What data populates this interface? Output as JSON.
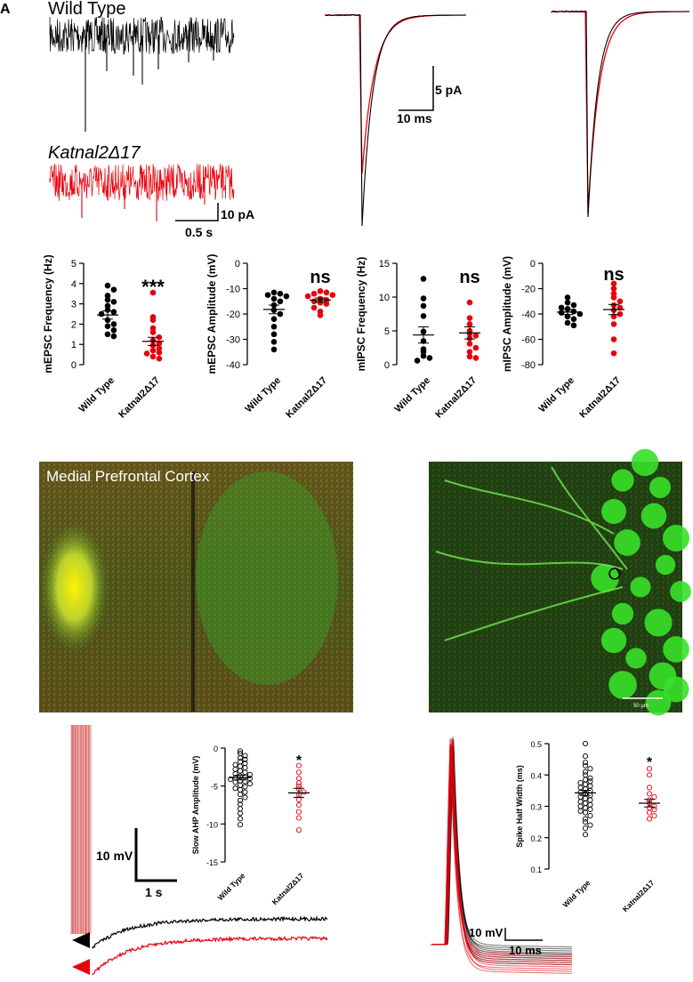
{
  "figure": {
    "panel_letter": "A",
    "trace_labels": {
      "wild_type": "Wild Type",
      "mutant": "Katnal2Δ17"
    },
    "scalebars": {
      "raw": {
        "y": "10 pA",
        "x": "0.5 s"
      },
      "avg": {
        "y": "5 pA",
        "x": "10 ms"
      },
      "ahp": {
        "y": "10 mV",
        "x": "1 s"
      },
      "spike": {
        "y": "10 mV",
        "x": "10 ms"
      }
    },
    "image_labels": {
      "mpfc": "Medial Prefrontal Cortex",
      "scale": "50 µm"
    }
  },
  "colors": {
    "wild_type": "#000000",
    "mutant": "#e8000b",
    "mutant_light": "#f08b8b"
  },
  "chart_data": [
    {
      "type": "scatter",
      "ylabel": "mEPSC Frequency (Hz)",
      "ylim": [
        0,
        5
      ],
      "yticks": [
        "0",
        "1",
        "2",
        "3",
        "4",
        "5"
      ],
      "categories": [
        "Wild Type",
        "Katnal2Δ17"
      ],
      "significance": "***",
      "series": [
        {
          "values": [
            3.9,
            3.7,
            3.4,
            3.2,
            3.1,
            2.9,
            2.7,
            2.6,
            2.5,
            2.2,
            2.0,
            1.9,
            1.7,
            1.5,
            1.4
          ],
          "mean": 2.45,
          "sem": 0.2
        },
        {
          "values": [
            3.55,
            2.35,
            2.2,
            1.8,
            1.6,
            1.35,
            1.2,
            1.05,
            0.95,
            0.8,
            0.7,
            0.6,
            0.55,
            0.4,
            0.3
          ],
          "mean": 1.15,
          "sem": 0.2
        }
      ]
    },
    {
      "type": "scatter",
      "ylabel": "mEPSC Amplitude (mV)",
      "ylim": [
        -40,
        0
      ],
      "yticks": [
        "0",
        "-10",
        "-20",
        "-30",
        "-40"
      ],
      "categories": [
        "Wild Type",
        "Katnal2Δ17"
      ],
      "significance": "ns",
      "series": [
        {
          "values": [
            -11.5,
            -12,
            -12.5,
            -13,
            -14,
            -15,
            -16.5,
            -18.5,
            -20,
            -22,
            -25,
            -28,
            -31,
            -34
          ],
          "mean": -18.2,
          "sem": 1.7
        },
        {
          "values": [
            -11,
            -11.5,
            -12,
            -12.5,
            -13,
            -14,
            -14.5,
            -15,
            -15.5,
            -16,
            -17.5,
            -19,
            -20.5
          ],
          "mean": -14.5,
          "sem": 0.8
        }
      ]
    },
    {
      "type": "scatter",
      "ylabel": "mIPSC Frequency (Hz)",
      "ylim": [
        0,
        15
      ],
      "yticks": [
        "0",
        "5",
        "10",
        "15"
      ],
      "categories": [
        "Wild Type",
        "Katnal2Δ17"
      ],
      "significance": "ns",
      "series": [
        {
          "values": [
            12.7,
            9.8,
            8.7,
            7.2,
            4.9,
            3.5,
            2.3,
            1.9,
            1.3,
            1.0,
            0.6
          ],
          "mean": 4.4,
          "sem": 1.2
        },
        {
          "values": [
            9.2,
            6.9,
            6.0,
            5.0,
            4.6,
            4.3,
            3.9,
            3.1,
            2.5,
            1.9,
            1.2,
            1.0
          ],
          "mean": 4.7,
          "sem": 0.9
        }
      ]
    },
    {
      "type": "scatter",
      "ylabel": "mIPSC Amplitude (mV)",
      "ylim": [
        -80,
        0
      ],
      "yticks": [
        "0",
        "-20",
        "-40",
        "-60",
        "-80"
      ],
      "categories": [
        "Wild Type",
        "Katnal2Δ17"
      ],
      "significance": "ns",
      "series": [
        {
          "values": [
            -27,
            -31,
            -33,
            -35,
            -36,
            -38,
            -39,
            -40,
            -42,
            -44,
            -47,
            -49
          ],
          "mean": -38.5,
          "sem": 2.0
        },
        {
          "values": [
            -16,
            -20,
            -24,
            -27,
            -30,
            -33,
            -35,
            -37,
            -40,
            -42,
            -48,
            -60,
            -71
          ],
          "mean": -36.5,
          "sem": 4.0
        }
      ]
    },
    {
      "type": "scatter",
      "ylabel": "Slow AHP Amplitude (mV)",
      "ylim": [
        -15,
        0
      ],
      "yticks": [
        "0",
        "-5",
        "-10",
        "-15"
      ],
      "categories": [
        "Wild Type",
        "Katnal2Δ17"
      ],
      "significance": "*",
      "hollow": true,
      "series": [
        {
          "values": [
            -0.4,
            -0.7,
            -1.0,
            -1.3,
            -1.5,
            -1.8,
            -2.0,
            -2.2,
            -2.4,
            -2.6,
            -2.8,
            -3.0,
            -3.2,
            -3.4,
            -3.5,
            -3.7,
            -3.8,
            -3.9,
            -4.0,
            -4.1,
            -4.3,
            -4.4,
            -4.5,
            -4.7,
            -4.9,
            -5.1,
            -5.3,
            -5.5,
            -5.8,
            -6.1,
            -6.5,
            -6.9,
            -7.4,
            -8.0,
            -8.6,
            -9.3,
            -10.1
          ],
          "mean": -3.9,
          "sem": 0.3
        },
        {
          "values": [
            -2.3,
            -3.2,
            -4.0,
            -4.6,
            -5.0,
            -5.4,
            -5.8,
            -6.2,
            -6.8,
            -7.5,
            -8.4,
            -9.2,
            -10.8
          ],
          "mean": -5.9,
          "sem": 0.6
        }
      ]
    },
    {
      "type": "scatter",
      "ylabel": "Spike Half Width (ms)",
      "ylim": [
        0.1,
        0.5
      ],
      "yticks": [
        "0.1",
        "0.2",
        "0.3",
        "0.4",
        "0.5"
      ],
      "categories": [
        "Wild Type",
        "Katnal2Δ17"
      ],
      "significance": "*",
      "hollow": true,
      "series": [
        {
          "values": [
            0.5,
            0.46,
            0.44,
            0.43,
            0.42,
            0.41,
            0.4,
            0.39,
            0.385,
            0.38,
            0.375,
            0.37,
            0.365,
            0.36,
            0.355,
            0.35,
            0.345,
            0.34,
            0.335,
            0.33,
            0.325,
            0.32,
            0.315,
            0.31,
            0.305,
            0.3,
            0.295,
            0.29,
            0.285,
            0.28,
            0.27,
            0.26,
            0.25,
            0.24,
            0.23,
            0.21
          ],
          "mean": 0.343,
          "sem": 0.008
        },
        {
          "values": [
            0.42,
            0.4,
            0.36,
            0.34,
            0.33,
            0.32,
            0.31,
            0.3,
            0.295,
            0.29,
            0.28,
            0.27,
            0.26
          ],
          "mean": 0.31,
          "sem": 0.012
        }
      ]
    }
  ]
}
